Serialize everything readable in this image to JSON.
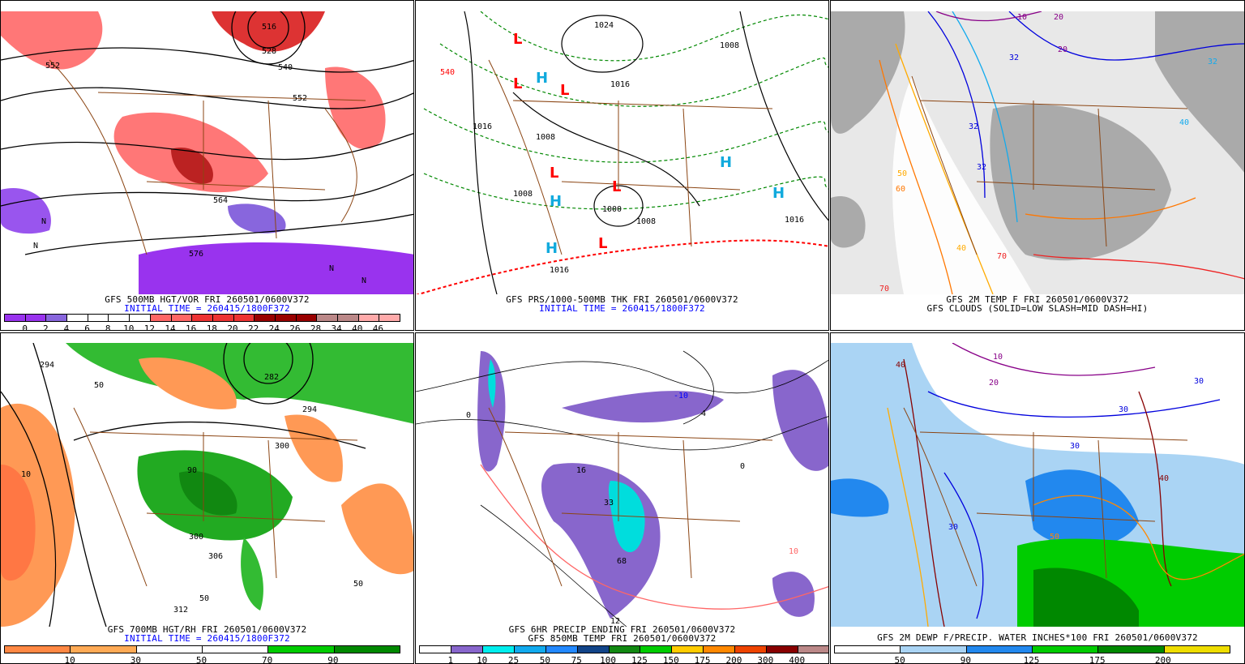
{
  "panels": [
    {
      "id": "500mb",
      "caption1": "GFS 500MB HGT/VOR FRI 260501/0600V372",
      "caption2": "INITIAL TIME = 260415/1800F372",
      "colorbar": {
        "colors": [
          "#9933ee",
          "#9933ee",
          "#8866dd",
          "#ffffff",
          "#ffffff",
          "#ffffff",
          "#ffffff",
          "#ff6666",
          "#ff6666",
          "#ee3333",
          "#ee3333",
          "#ee3333",
          "#990000",
          "#990000",
          "#990000",
          "#bb8888",
          "#bb8888",
          "#ffaaaa",
          "#ffaaaa"
        ],
        "labels": [
          "0",
          "2",
          "4",
          "6",
          "8",
          "10",
          "12",
          "14",
          "16",
          "18",
          "20",
          "22",
          "24",
          "26",
          "28",
          "34",
          "40",
          "46"
        ]
      },
      "map_labels": [
        "552",
        "516",
        "528",
        "540",
        "552",
        "564",
        "576",
        "N",
        "N",
        "N",
        "N"
      ]
    },
    {
      "id": "prs",
      "caption1": "GFS PRS/1000-500MB THK FRI 260501/0600V372",
      "caption2": "INITIAL TIME = 260415/1800F372",
      "map_labels": [
        "1024",
        "1008",
        "1016",
        "1008",
        "1008",
        "1016",
        "1000",
        "1008",
        "1016",
        "1016",
        "540"
      ],
      "pressure_centers": [
        "L",
        "L",
        "L",
        "L",
        "L",
        "L",
        "H",
        "H",
        "H",
        "H",
        "H"
      ]
    },
    {
      "id": "2mtemp",
      "caption1": "GFS 2M TEMP F FRI 260501/0600V372",
      "caption2": "GFS CLOUDS (SOLID=LOW SLASH=MID DASH=HI)",
      "map_labels": [
        "10",
        "20",
        "20",
        "32",
        "32",
        "32",
        "40",
        "50",
        "60",
        "70",
        "70",
        "40",
        "32"
      ]
    },
    {
      "id": "700mb",
      "caption1": "GFS 700MB HGT/RH FRI 260501/0600V372",
      "caption2": "INITIAL TIME = 260415/1800F372",
      "colorbar": {
        "colors": [
          "#ff8844",
          "#ffaa55",
          "#ffffff",
          "#ffffff",
          "#00cc00",
          "#008800"
        ],
        "labels": [
          "10",
          "30",
          "50",
          "70",
          "90"
        ]
      },
      "map_labels": [
        "294",
        "282",
        "294",
        "300",
        "306",
        "300",
        "312",
        "10",
        "50",
        "90",
        "50",
        "50"
      ]
    },
    {
      "id": "precip",
      "caption1": "GFS 6HR PRECIP ENDING FRI 260501/0600V372",
      "caption2": "GFS 850MB TEMP FRI 260501/0600V372",
      "colorbar": {
        "colors": [
          "#ffffff",
          "#8866cc",
          "#00eeee",
          "#11aaee",
          "#2288ff",
          "#114488",
          "#118811",
          "#00cc00",
          "#ffcc00",
          "#ff8800",
          "#ee4400",
          "#880000",
          "#bb8888"
        ],
        "labels": [
          "1",
          "10",
          "25",
          "50",
          "75",
          "100",
          "125",
          "150",
          "175",
          "200",
          "300",
          "400"
        ]
      },
      "map_labels": [
        "-10",
        "0",
        "16",
        "33",
        "68",
        "12",
        "0",
        "10",
        "4"
      ]
    },
    {
      "id": "dewp",
      "caption1": "GFS 2M DEWP F/PRECIP. WATER INCHES*100 FRI 260501/0600V372",
      "caption2": "",
      "colorbar": {
        "colors": [
          "#ffffff",
          "#aad4f4",
          "#2288ee",
          "#00cc00",
          "#008800",
          "#eedd00"
        ],
        "labels": [
          "50",
          "90",
          "125",
          "175",
          "200"
        ]
      },
      "map_labels": [
        "10",
        "20",
        "30",
        "30",
        "30",
        "40",
        "40",
        "50",
        "30"
      ]
    }
  ]
}
